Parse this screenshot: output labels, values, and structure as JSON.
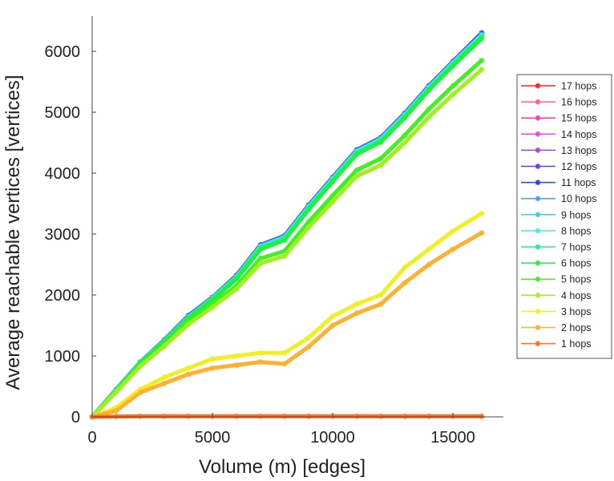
{
  "chart_data": {
    "type": "line",
    "title": "",
    "xlabel": "Volume (m) [edges]",
    "ylabel": "Average reachable vertices [vertices]",
    "xlim": [
      0,
      17000
    ],
    "ylim": [
      0,
      6600
    ],
    "xticks": [
      0,
      5000,
      10000,
      15000
    ],
    "yticks": [
      0,
      1000,
      2000,
      3000,
      4000,
      5000,
      6000
    ],
    "legend_position": "right",
    "x": [
      0,
      1000,
      2000,
      3000,
      4000,
      5000,
      6000,
      7000,
      8000,
      9000,
      10000,
      11000,
      12000,
      13000,
      14000,
      15000,
      16200
    ],
    "series": [
      {
        "name": "17 hops",
        "color": "#ff2020",
        "values": [
          0,
          450,
          900,
          1260,
          1660,
          1960,
          2320,
          2820,
          2970,
          3470,
          3930,
          4380,
          4580,
          4980,
          5430,
          5830,
          6300
        ]
      },
      {
        "name": "16 hops",
        "color": "#ff6080",
        "values": [
          0,
          450,
          900,
          1260,
          1660,
          1960,
          2320,
          2820,
          2970,
          3470,
          3930,
          4380,
          4580,
          4980,
          5430,
          5830,
          6300
        ]
      },
      {
        "name": "15 hops",
        "color": "#ff30c0",
        "values": [
          0,
          450,
          900,
          1260,
          1660,
          1960,
          2320,
          2820,
          2970,
          3470,
          3930,
          4380,
          4580,
          4980,
          5430,
          5830,
          6300
        ]
      },
      {
        "name": "14 hops",
        "color": "#f040f0",
        "values": [
          0,
          450,
          900,
          1260,
          1660,
          1960,
          2320,
          2820,
          2970,
          3470,
          3930,
          4380,
          4580,
          4980,
          5430,
          5830,
          6300
        ]
      },
      {
        "name": "13 hops",
        "color": "#a040f0",
        "values": [
          0,
          450,
          900,
          1260,
          1660,
          1960,
          2320,
          2820,
          2970,
          3470,
          3930,
          4380,
          4580,
          4980,
          5430,
          5830,
          6300
        ]
      },
      {
        "name": "12 hops",
        "color": "#6040f0",
        "values": [
          0,
          450,
          900,
          1260,
          1660,
          1960,
          2320,
          2820,
          2970,
          3470,
          3930,
          4380,
          4580,
          4980,
          5430,
          5830,
          6300
        ]
      },
      {
        "name": "11 hops",
        "color": "#2040f0",
        "values": [
          0,
          450,
          900,
          1260,
          1660,
          1960,
          2320,
          2820,
          2970,
          3470,
          3930,
          4380,
          4580,
          4980,
          5430,
          5830,
          6290
        ]
      },
      {
        "name": "10 hops",
        "color": "#40a0ff",
        "values": [
          0,
          450,
          900,
          1255,
          1650,
          1955,
          2310,
          2810,
          2960,
          3460,
          3920,
          4370,
          4570,
          4970,
          5420,
          5820,
          6280
        ]
      },
      {
        "name": "9 hops",
        "color": "#30d0f0",
        "values": [
          0,
          450,
          900,
          1250,
          1640,
          1950,
          2300,
          2800,
          2950,
          3450,
          3910,
          4360,
          4560,
          4960,
          5410,
          5810,
          6270
        ]
      },
      {
        "name": "8 hops",
        "color": "#40f0e0",
        "values": [
          0,
          445,
          895,
          1245,
          1635,
          1940,
          2290,
          2790,
          2940,
          3440,
          3900,
          4350,
          4550,
          4950,
          5400,
          5800,
          6260
        ]
      },
      {
        "name": "7 hops",
        "color": "#20f080",
        "values": [
          0,
          440,
          890,
          1240,
          1630,
          1930,
          2280,
          2770,
          2920,
          3420,
          3880,
          4330,
          4530,
          4930,
          5380,
          5780,
          6240
        ]
      },
      {
        "name": "6 hops",
        "color": "#20f040",
        "values": [
          0,
          435,
          880,
          1230,
          1620,
          1920,
          2260,
          2750,
          2900,
          3400,
          3860,
          4310,
          4510,
          4910,
          5360,
          5760,
          6210
        ]
      },
      {
        "name": "5 hops",
        "color": "#40f020",
        "values": [
          0,
          420,
          850,
          1190,
          1560,
          1850,
          2150,
          2600,
          2720,
          3200,
          3630,
          4050,
          4240,
          4620,
          5050,
          5430,
          5850
        ]
      },
      {
        "name": "4 hops",
        "color": "#a0f020",
        "values": [
          0,
          410,
          830,
          1160,
          1520,
          1800,
          2100,
          2520,
          2640,
          3110,
          3530,
          3950,
          4130,
          4500,
          4920,
          5290,
          5700
        ]
      },
      {
        "name": "3 hops",
        "color": "#f0f020",
        "values": [
          0,
          150,
          450,
          650,
          800,
          950,
          1000,
          1050,
          1050,
          1300,
          1650,
          1850,
          2000,
          2450,
          2750,
          3050,
          3340
        ]
      },
      {
        "name": "2 hops",
        "color": "#ffb030",
        "values": [
          0,
          100,
          400,
          550,
          700,
          800,
          850,
          900,
          870,
          1150,
          1500,
          1700,
          1850,
          2200,
          2500,
          2750,
          3020
        ]
      },
      {
        "name": "1 hops",
        "color": "#ff7020",
        "values": [
          0,
          5,
          10,
          10,
          10,
          10,
          10,
          10,
          10,
          10,
          10,
          10,
          10,
          10,
          10,
          10,
          10
        ]
      }
    ]
  }
}
